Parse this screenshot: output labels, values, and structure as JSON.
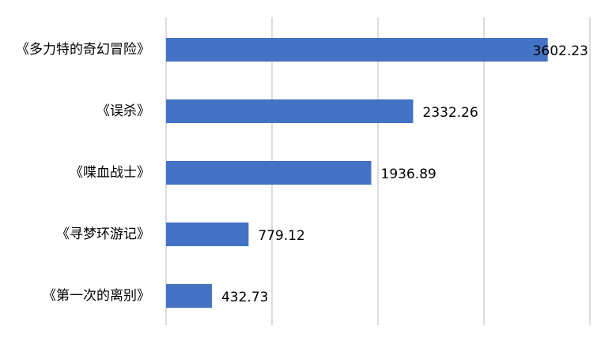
{
  "chart_data": {
    "type": "bar",
    "orientation": "horizontal",
    "categories": [
      "《多力特的奇幻冒险》",
      "《误杀》",
      "《喋血战士》",
      "《寻梦环游记》",
      "《第一次的离别》"
    ],
    "values": [
      3602.23,
      2332.26,
      1936.89,
      779.12,
      432.73
    ],
    "color": "#4472c4",
    "xlim": [
      0,
      4000
    ],
    "xticks": [
      0,
      1000,
      2000,
      3000,
      4000
    ],
    "grid": true
  }
}
